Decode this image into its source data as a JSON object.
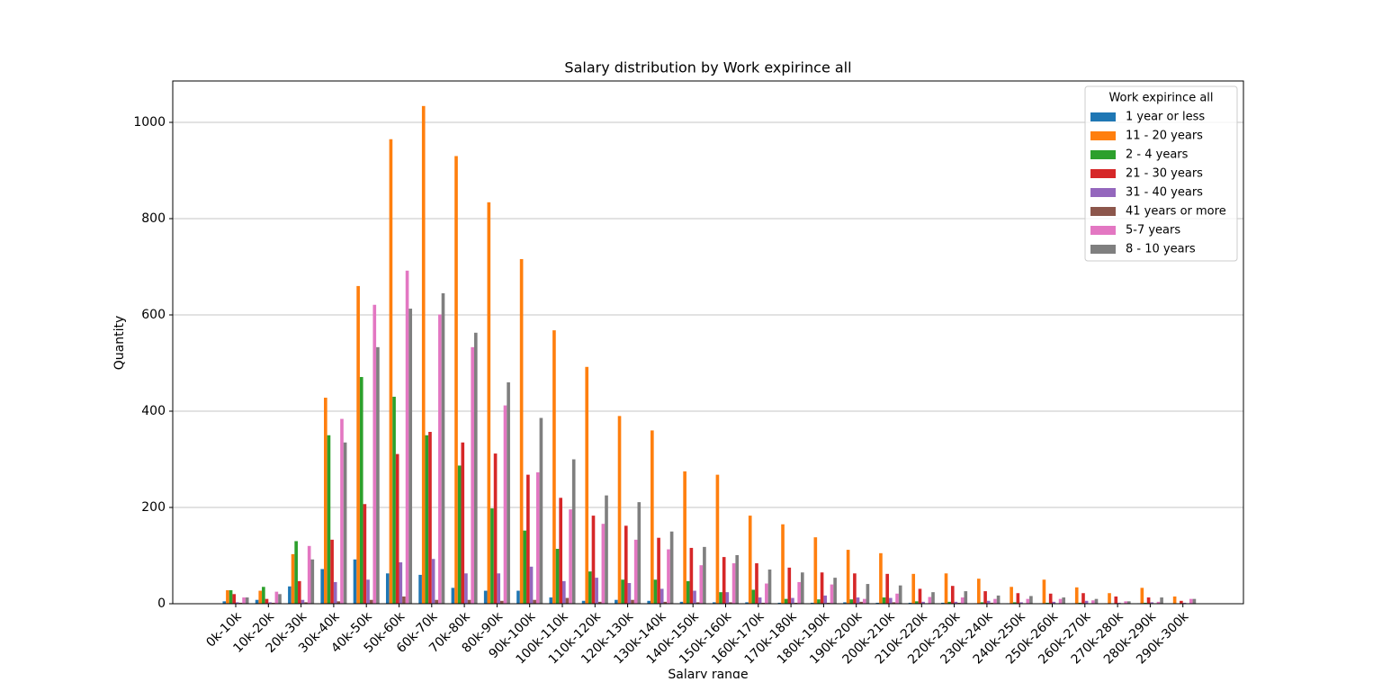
{
  "chart_data": {
    "type": "bar",
    "title": "Salary distribution by Work expirince all",
    "x_label": "Salary range",
    "y_label": "Quantity",
    "legend_title": "Work expirince all",
    "legend": "upper right",
    "grid": true,
    "categories": [
      "0k-10k",
      "10k-20k",
      "20k-30k",
      "30k-40k",
      "40k-50k",
      "50k-60k",
      "60k-70k",
      "70k-80k",
      "80k-90k",
      "90k-100k",
      "100k-110k",
      "110k-120k",
      "120k-130k",
      "130k-140k",
      "140k-150k",
      "150k-160k",
      "160k-170k",
      "170k-180k",
      "180k-190k",
      "190k-200k",
      "200k-210k",
      "210k-220k",
      "220k-230k",
      "230k-240k",
      "240k-250k",
      "250k-260k",
      "260k-270k",
      "270k-280k",
      "280k-290k",
      "290k-300k"
    ],
    "series": [
      {
        "name": "1 year or less",
        "color": "#1f77b4",
        "values": [
          5,
          8,
          36,
          72,
          92,
          63,
          60,
          33,
          27,
          27,
          13,
          6,
          8,
          6,
          4,
          3,
          3,
          2,
          2,
          3,
          2,
          2,
          2,
          1,
          1,
          1,
          1,
          1,
          1,
          1
        ]
      },
      {
        "name": "11 - 20 years",
        "color": "#ff7f0e",
        "values": [
          28,
          27,
          103,
          428,
          660,
          965,
          1034,
          930,
          834,
          716,
          568,
          492,
          390,
          360,
          275,
          268,
          183,
          165,
          138,
          112,
          105,
          62,
          63,
          52,
          35,
          50,
          34,
          22,
          33,
          15
        ]
      },
      {
        "name": "2 - 4 years",
        "color": "#2ca02c",
        "values": [
          28,
          35,
          130,
          350,
          471,
          430,
          350,
          287,
          198,
          152,
          114,
          67,
          50,
          50,
          47,
          24,
          29,
          10,
          9,
          9,
          13,
          5,
          4,
          3,
          3,
          2,
          2,
          1,
          2,
          1
        ]
      },
      {
        "name": "21 - 30 years",
        "color": "#d62728",
        "values": [
          20,
          10,
          47,
          133,
          207,
          311,
          357,
          335,
          312,
          268,
          220,
          183,
          162,
          137,
          116,
          97,
          84,
          75,
          65,
          63,
          62,
          31,
          37,
          26,
          22,
          21,
          22,
          15,
          13,
          6
        ]
      },
      {
        "name": "31 - 40 years",
        "color": "#9467bd",
        "values": [
          3,
          3,
          8,
          45,
          50,
          86,
          93,
          63,
          63,
          77,
          47,
          54,
          43,
          31,
          27,
          24,
          13,
          12,
          17,
          13,
          12,
          4,
          4,
          6,
          3,
          4,
          6,
          2,
          3,
          2
        ]
      },
      {
        "name": "41 years or more",
        "color": "#8c564b",
        "values": [
          2,
          2,
          3,
          5,
          8,
          15,
          8,
          8,
          6,
          8,
          12,
          4,
          8,
          4,
          3,
          3,
          2,
          2,
          2,
          4,
          3,
          1,
          2,
          2,
          1,
          1,
          1,
          1,
          1,
          1
        ]
      },
      {
        "name": "5-7 years",
        "color": "#e377c2",
        "values": [
          13,
          25,
          120,
          384,
          621,
          692,
          601,
          533,
          412,
          273,
          196,
          166,
          133,
          113,
          80,
          84,
          42,
          45,
          40,
          10,
          21,
          14,
          13,
          10,
          10,
          10,
          7,
          5,
          4,
          10
        ]
      },
      {
        "name": "8 - 10 years",
        "color": "#7f7f7f",
        "values": [
          13,
          20,
          92,
          335,
          533,
          613,
          645,
          563,
          460,
          386,
          300,
          225,
          211,
          150,
          118,
          101,
          71,
          65,
          54,
          41,
          38,
          24,
          26,
          17,
          16,
          13,
          10,
          5,
          13,
          10
        ]
      }
    ],
    "ylim": [
      0,
      1086
    ],
    "yticks": [
      0,
      200,
      400,
      600,
      800,
      1000
    ]
  }
}
